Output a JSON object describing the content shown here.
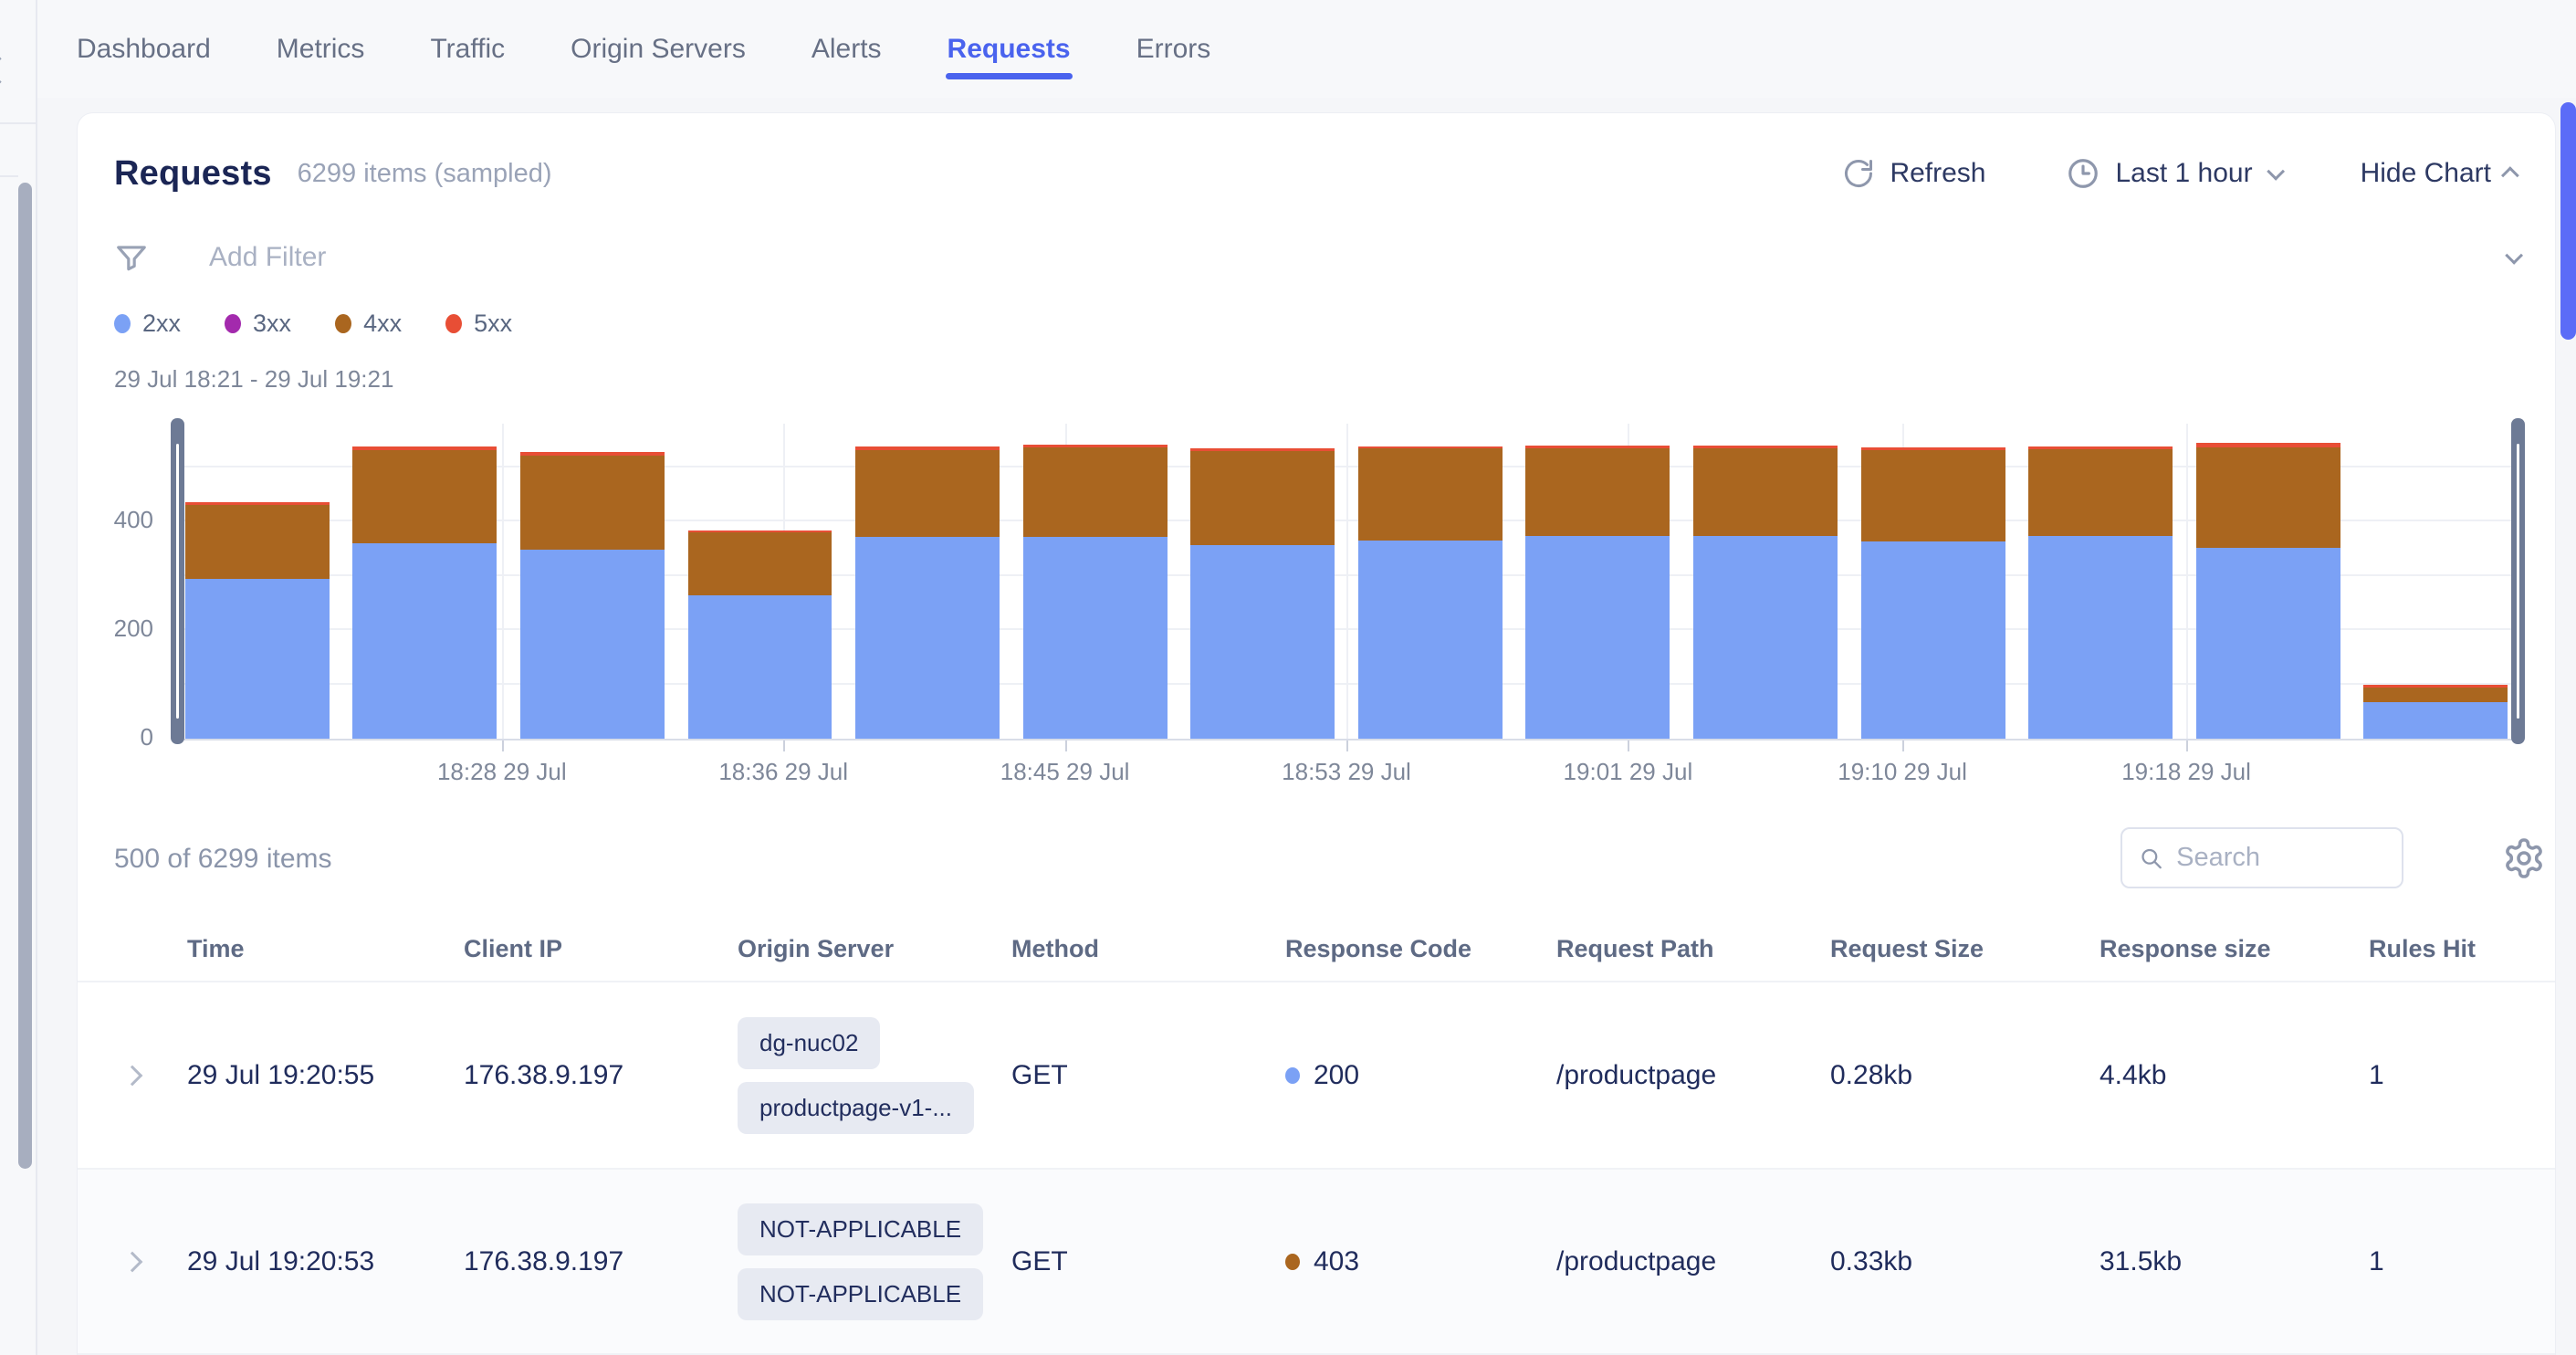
{
  "nav": {
    "tabs": [
      {
        "label": "Dashboard",
        "active": false
      },
      {
        "label": "Metrics",
        "active": false
      },
      {
        "label": "Traffic",
        "active": false
      },
      {
        "label": "Origin Servers",
        "active": false
      },
      {
        "label": "Alerts",
        "active": false
      },
      {
        "label": "Requests",
        "active": true
      },
      {
        "label": "Errors",
        "active": false
      }
    ]
  },
  "header": {
    "title": "Requests",
    "items_count": "6299 items (sampled)",
    "refresh_label": "Refresh",
    "time_range_label": "Last 1 hour",
    "hide_chart_label": "Hide Chart"
  },
  "filter": {
    "placeholder": "Add Filter"
  },
  "legend": [
    {
      "label": "2xx",
      "color": "#7ba1f5"
    },
    {
      "label": "3xx",
      "color": "#a32aad"
    },
    {
      "label": "4xx",
      "color": "#aa661f"
    },
    {
      "label": "5xx",
      "color": "#e84e35"
    }
  ],
  "chart_data": {
    "type": "bar",
    "stacked": true,
    "date_range_label": "29 Jul 18:21 - 29 Jul 19:21",
    "categories": [
      "bar-1",
      "bar-2",
      "bar-3",
      "bar-4",
      "bar-5",
      "bar-6",
      "bar-7",
      "bar-8",
      "bar-9",
      "bar-10",
      "bar-11",
      "bar-12",
      "bar-13",
      "bar-14"
    ],
    "series": [
      {
        "name": "2xx",
        "color": "#7ba1f5",
        "values": [
          295,
          360,
          348,
          264,
          372,
          372,
          357,
          364,
          374,
          373,
          363,
          373,
          352,
          67
        ]
      },
      {
        "name": "3xx",
        "color": "#a32aad",
        "values": [
          0,
          0,
          0,
          0,
          0,
          0,
          0,
          0,
          0,
          0,
          0,
          0,
          0,
          0
        ]
      },
      {
        "name": "4xx",
        "color": "#aa661f",
        "values": [
          135,
          172,
          174,
          116,
          160,
          165,
          173,
          170,
          161,
          161,
          168,
          160,
          185,
          28
        ]
      },
      {
        "name": "5xx",
        "color": "#e84e35",
        "values": [
          5,
          6,
          6,
          4,
          6,
          5,
          5,
          4,
          5,
          5,
          5,
          5,
          7,
          4
        ]
      }
    ],
    "ylim": [
      0,
      580
    ],
    "ytick_labels": [
      {
        "value": 0,
        "label": "0"
      },
      {
        "value": 200,
        "label": "200"
      },
      {
        "value": 400,
        "label": "400"
      }
    ],
    "gridlines_y": [
      100,
      200,
      300,
      400,
      500
    ],
    "x_ticks": [
      {
        "label": "18:28 29 Jul",
        "position_pct": 14.0
      },
      {
        "label": "18:36 29 Jul",
        "position_pct": 26.0
      },
      {
        "label": "18:45 29 Jul",
        "position_pct": 38.0
      },
      {
        "label": "18:53 29 Jul",
        "position_pct": 50.0
      },
      {
        "label": "19:01 29 Jul",
        "position_pct": 62.0
      },
      {
        "label": "19:10 29 Jul",
        "position_pct": 73.7
      },
      {
        "label": "19:18 29 Jul",
        "position_pct": 85.8
      }
    ],
    "legend_position": "top",
    "grid": true
  },
  "list": {
    "count_label": "500 of 6299 items",
    "search_placeholder": "Search"
  },
  "table": {
    "columns": [
      "Time",
      "Client IP",
      "Origin Server",
      "Method",
      "Response Code",
      "Request Path",
      "Request Size",
      "Response size",
      "Rules Hit"
    ],
    "rows": [
      {
        "time": "29 Jul 19:20:55",
        "client_ip": "176.38.9.197",
        "origin_tags": [
          "dg-nuc02",
          "productpage-v1-..."
        ],
        "method": "GET",
        "response_code": "200",
        "response_code_color": "#7ba1f5",
        "request_path": "/productpage",
        "request_size": "0.28kb",
        "response_size": "4.4kb",
        "rules_hit": "1"
      },
      {
        "time": "29 Jul 19:20:53",
        "client_ip": "176.38.9.197",
        "origin_tags": [
          "NOT-APPLICABLE",
          "NOT-APPLICABLE"
        ],
        "method": "GET",
        "response_code": "403",
        "response_code_color": "#aa661f",
        "request_path": "/productpage",
        "request_size": "0.33kb",
        "response_size": "31.5kb",
        "rules_hit": "1"
      }
    ]
  },
  "colors": {
    "accent": "#4a63ee",
    "page_scrollbar": "#5b6cf7",
    "brush_handle": "#6d7a95"
  }
}
